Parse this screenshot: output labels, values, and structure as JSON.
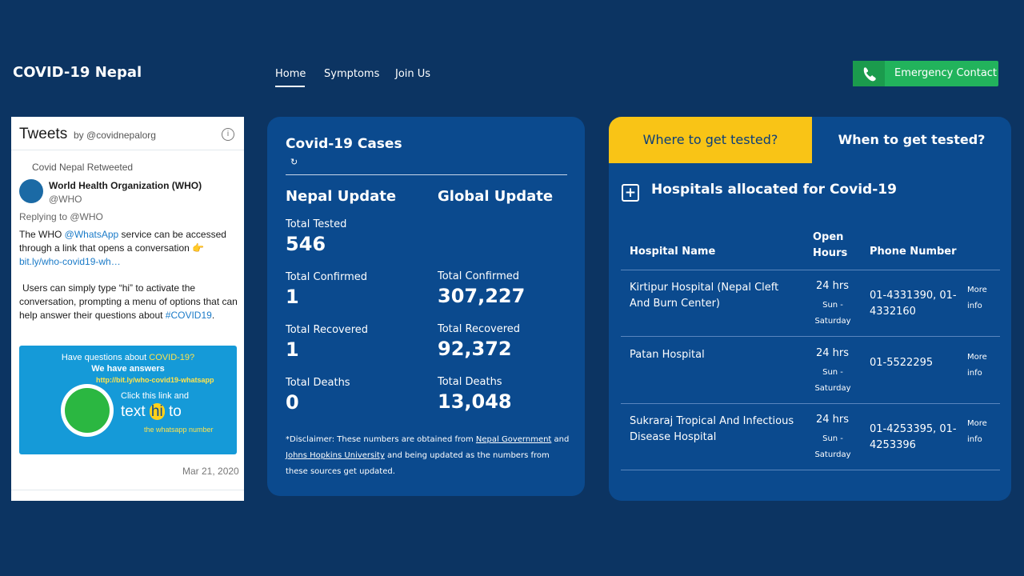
{
  "header": {
    "brand": "COVID-19 Nepal",
    "nav": [
      "Home",
      "Symptoms",
      "Join Us"
    ],
    "emergency": "Emergency Contact"
  },
  "tweets": {
    "title": "Tweets",
    "by": "by @covidnepalorg",
    "retweeted": "Covid Nepal Retweeted",
    "author": "World Health Organization (WHO)",
    "handle": "@WHO",
    "replying": "Replying to @WHO",
    "text": [
      "The WHO ",
      "@WhatsApp",
      " service can be accessed through a link that opens a conversation 👉",
      "bit.ly/who-covid19-wh…"
    ],
    "text2": [
      "Users can simply type “hi” to activate the conversation, prompting a menu of options that can help answer their questions about ",
      "#COVID19",
      "."
    ],
    "card": {
      "line1": "Have questions about ",
      "line1b": "COVID-19?",
      "line2": "We have answers",
      "link": "http://bit.ly/who-covid19-whatsapp",
      "line3": "Click this link and",
      "line4a": "text ",
      "line4b": "hi",
      "line4c": " to",
      "line5": "the whatsapp number"
    },
    "date": "Mar 21, 2020"
  },
  "cases": {
    "title": "Covid-19 Cases",
    "nepal": {
      "heading": "Nepal Update",
      "stats": [
        {
          "label": "Total Tested",
          "value": "546"
        },
        {
          "label": "Total Confirmed",
          "value": "1"
        },
        {
          "label": "Total Recovered",
          "value": "1"
        },
        {
          "label": "Total Deaths",
          "value": "0"
        }
      ]
    },
    "global": {
      "heading": "Global Update",
      "stats": [
        {
          "label": "Total Confirmed",
          "value": "307,227"
        },
        {
          "label": "Total Recovered",
          "value": "92,372"
        },
        {
          "label": "Total Deaths",
          "value": "13,048"
        }
      ]
    },
    "disclaimer": [
      "*Disclaimer: These numbers are obtained from ",
      "Nepal Government",
      " and ",
      "Johns Hopkins University",
      " and being updated as the numbers from these sources get updated."
    ]
  },
  "hospitals": {
    "tabs": [
      "Where to get tested?",
      "When to get tested?"
    ],
    "heading": "Hospitals allocated for Covid-19",
    "columns": [
      "Hospital Name",
      "Open Hours",
      "Phone Number"
    ],
    "rows": [
      {
        "name": "Kirtipur Hospital (Nepal Cleft And Burn Center)",
        "hours": "24 hrs",
        "days": "Sun - Saturday",
        "phone": "01-4331390, 01-4332160",
        "more": "More info"
      },
      {
        "name": "Patan Hospital",
        "hours": "24 hrs",
        "days": "Sun - Saturday",
        "phone": "01-5522295",
        "more": "More info"
      },
      {
        "name": "Sukraraj Tropical And Infectious Disease Hospital",
        "hours": "24 hrs",
        "days": "Sun - Saturday",
        "phone": "01-4253395, 01-4253396",
        "more": "More info"
      }
    ]
  }
}
